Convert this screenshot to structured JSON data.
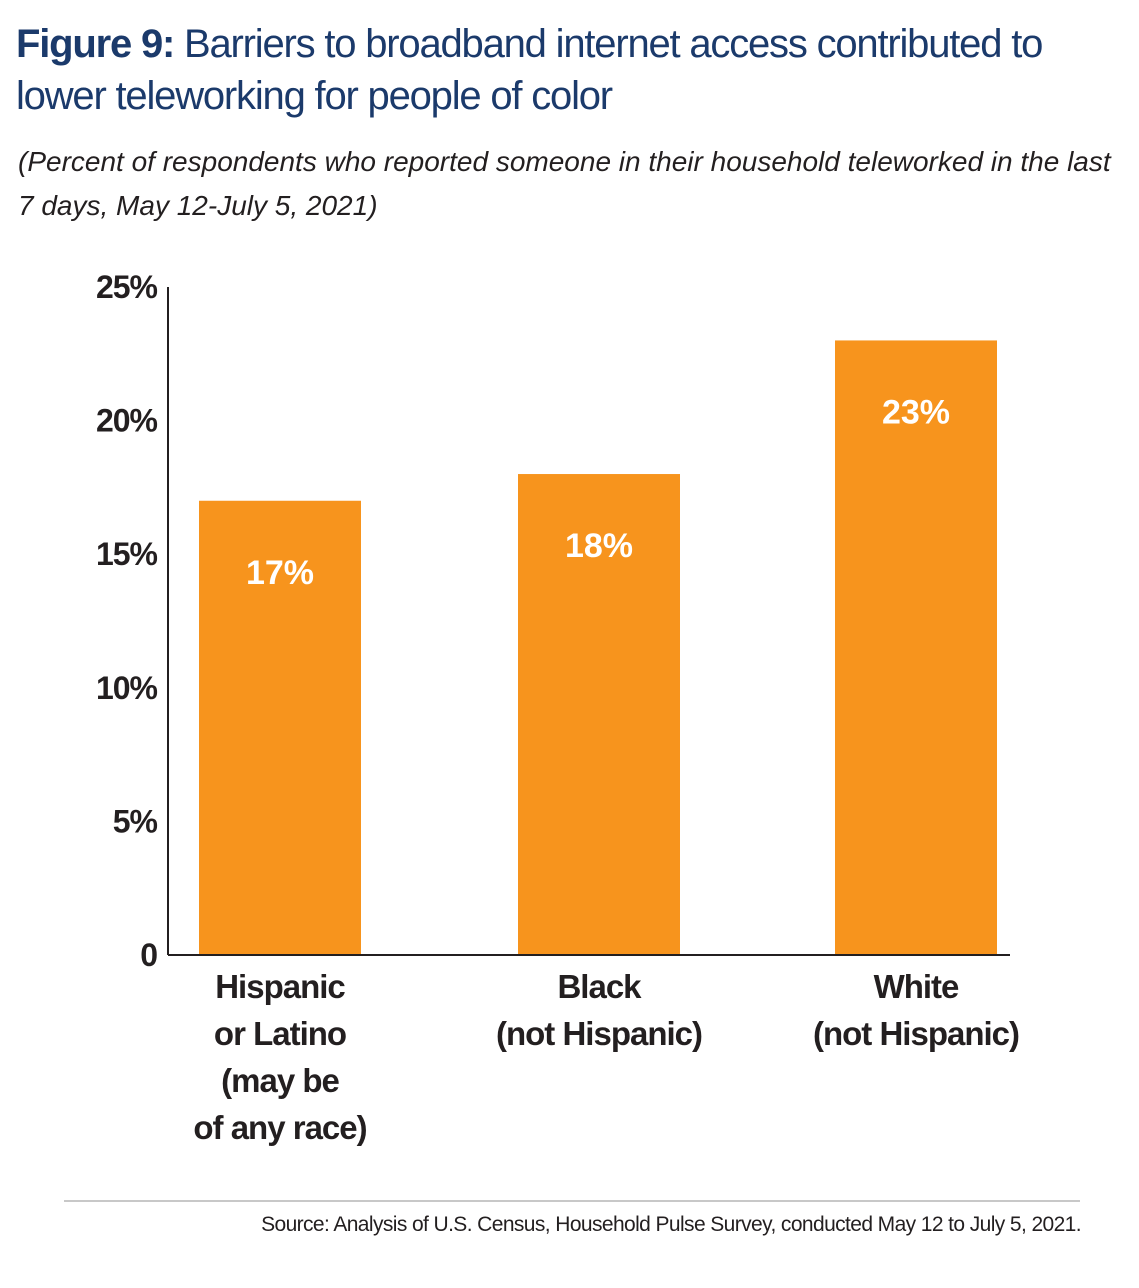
{
  "header": {
    "figure_label": "Figure 9:",
    "title": " Barriers to broadband internet access contributed to lower teleworking for people of color",
    "subtitle": "(Percent of respondents who reported someone in their household teleworked in the last 7 days, May 12-July 5, 2021)"
  },
  "footer": {
    "source": "Source: Analysis of U.S. Census, Household Pulse Survey, conducted May 12 to July 5, 2021."
  },
  "colors": {
    "bar": "#f7941d",
    "axis": "#231f20",
    "title": "#1b3a6b"
  },
  "chart_data": {
    "type": "bar",
    "title": "Barriers to broadband internet access contributed to lower teleworking for people of color",
    "subtitle": "(Percent of respondents who reported someone in their household teleworked in the last 7 days, May 12-July 5, 2021)",
    "categories": [
      [
        "Hispanic",
        "or Latino",
        "(may be",
        "of any race)"
      ],
      [
        "Black",
        "(not Hispanic)"
      ],
      [
        "White",
        "(not Hispanic)"
      ]
    ],
    "values": [
      17,
      18,
      23
    ],
    "data_labels": [
      "17%",
      "18%",
      "23%"
    ],
    "yticks": [
      0,
      5,
      10,
      15,
      20,
      25
    ],
    "ytick_labels": [
      "0",
      "5%",
      "10%",
      "15%",
      "20%",
      "25%"
    ],
    "ylim": [
      0,
      25
    ],
    "xlabel": "",
    "ylabel": "",
    "grid": false,
    "legend": "none"
  }
}
